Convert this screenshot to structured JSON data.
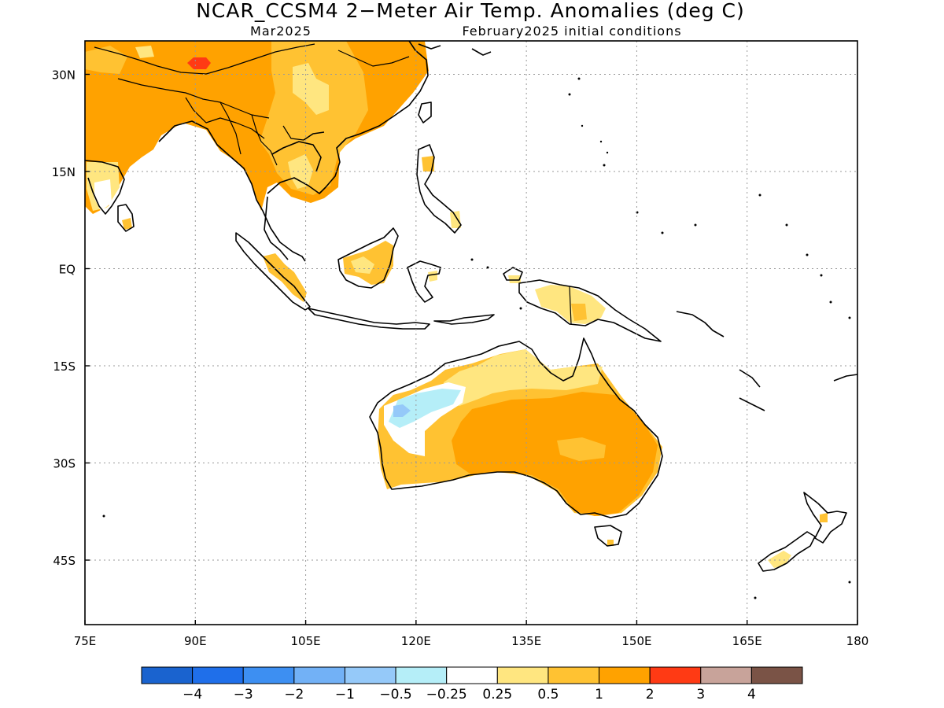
{
  "title": "NCAR_CCSM4 2−Meter Air Temp. Anomalies (deg C)",
  "valid_month": "Mar2025",
  "initial_conditions": "February2025 initial conditions",
  "lon_labels": [
    "75E",
    "90E",
    "105E",
    "120E",
    "135E",
    "150E",
    "165E",
    "180"
  ],
  "lat_labels": [
    "30N",
    "15N",
    "EQ",
    "15S",
    "30S",
    "45S"
  ],
  "colorbar": {
    "colors": [
      "#1a63cf",
      "#1f6fea",
      "#3d8ff2",
      "#72b1f6",
      "#95c9f9",
      "#b5eef8",
      "#ffffff",
      "#ffe680",
      "#ffc232",
      "#ffa200",
      "#ff3a14",
      "#c8a39a",
      "#7a5346"
    ],
    "labels": [
      "−4",
      "−3",
      "−2",
      "−1",
      "−0.5",
      "−0.25",
      "0.25",
      "0.5",
      "1",
      "2",
      "3",
      "4"
    ]
  }
}
